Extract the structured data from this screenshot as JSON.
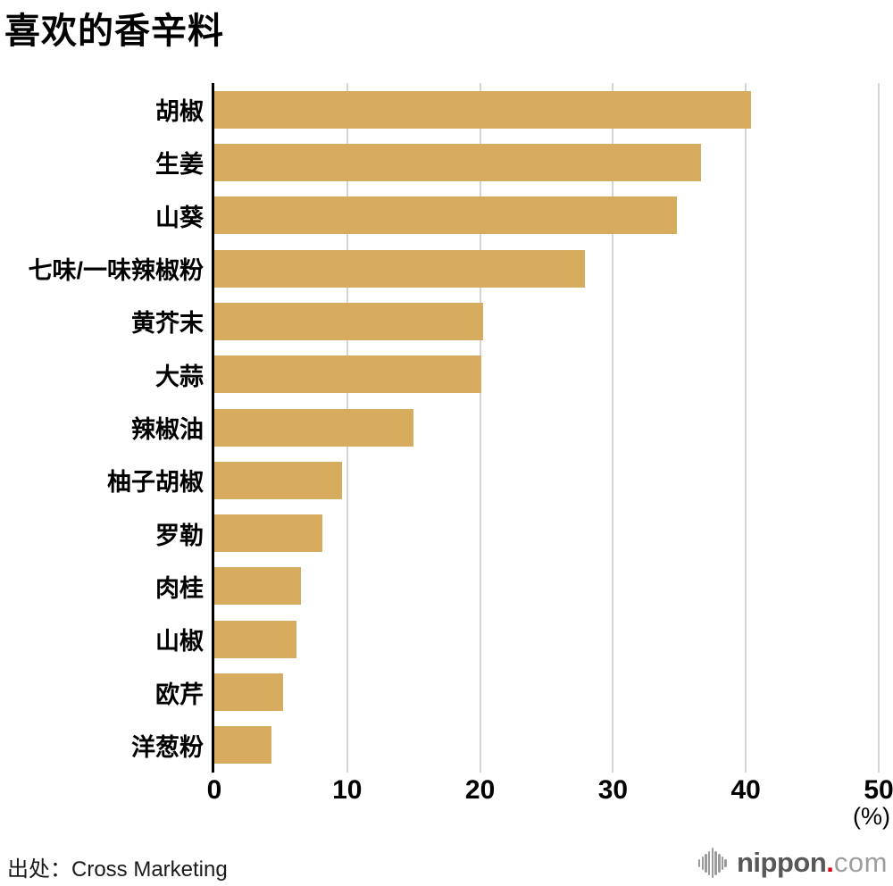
{
  "title": "喜欢的香辛料",
  "source": "出处：Cross Marketing",
  "chart_data": {
    "type": "bar",
    "orientation": "horizontal",
    "title": "喜欢的香辛料",
    "categories": [
      "胡椒",
      "生姜",
      "山葵",
      "七味/一味辣椒粉",
      "黄芥末",
      "大蒜",
      "辣椒油",
      "柚子胡椒",
      "罗勒",
      "肉桂",
      "山椒",
      "欧芹",
      "洋葱粉"
    ],
    "values": [
      40.4,
      36.6,
      34.8,
      27.9,
      20.2,
      20.1,
      15.0,
      9.6,
      8.1,
      6.5,
      6.2,
      5.2,
      4.3
    ],
    "unit": "(%)",
    "xlabel": "",
    "ylabel": "",
    "xlim": [
      0,
      50
    ],
    "x_ticks": [
      0,
      10,
      20,
      30,
      40,
      50
    ],
    "grid": "vertical-gridlines",
    "legend": "none",
    "bar_color": "#D7AB5D",
    "gridline_color": "#D5D5D5",
    "axis_color": "#000000"
  },
  "logo": {
    "name": "nippon.com",
    "icon": "soundwave-icon",
    "text_main": "nippon",
    "text_dot": ".",
    "text_suffix": "com",
    "color_main": "#595757",
    "color_dot": "#E60012",
    "color_suffix": "#9E9E9E",
    "icon_color": "#9B9B9B",
    "icon_bar_heights": [
      9,
      15,
      21,
      27,
      34,
      27,
      21,
      15,
      9
    ]
  }
}
